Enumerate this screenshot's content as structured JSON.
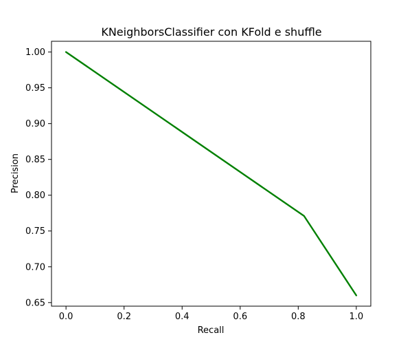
{
  "chart_data": {
    "type": "line",
    "title": "KNeighborsClassifier con KFold e shuffle",
    "xlabel": "Recall",
    "ylabel": "Precision",
    "xlim": [
      -0.05,
      1.05
    ],
    "ylim": [
      0.645,
      1.015
    ],
    "xticks": [
      0.0,
      0.2,
      0.4,
      0.6,
      0.8,
      1.0
    ],
    "xtick_labels": [
      "0.0",
      "0.2",
      "0.4",
      "0.6",
      "0.8",
      "1.0"
    ],
    "yticks": [
      0.65,
      0.7,
      0.75,
      0.8,
      0.85,
      0.9,
      0.95,
      1.0
    ],
    "ytick_labels": [
      "0.65",
      "0.70",
      "0.75",
      "0.80",
      "0.85",
      "0.90",
      "0.95",
      "1.00"
    ],
    "grid": false,
    "series": [
      {
        "color": "#008000",
        "x": [
          0.0,
          0.82,
          1.0
        ],
        "y": [
          1.0,
          0.771,
          0.66
        ]
      }
    ]
  }
}
